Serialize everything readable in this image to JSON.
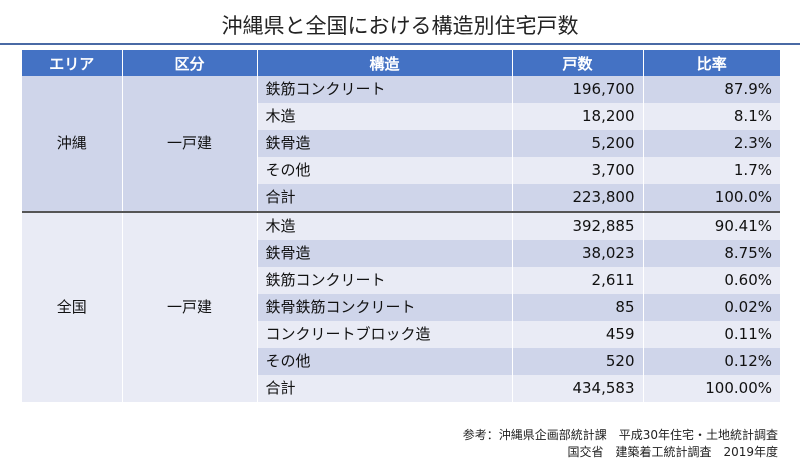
{
  "title": "沖縄県と全国における構造別住宅戸数",
  "headers": [
    "エリア",
    "区分",
    "構造",
    "戸数",
    "比率"
  ],
  "groups": [
    {
      "area": "沖縄",
      "kubun": "一戸建",
      "rows": [
        {
          "structure": "鉄筋コンクリート",
          "count": "196,700",
          "ratio": "87.9%"
        },
        {
          "structure": "木造",
          "count": "18,200",
          "ratio": "8.1%"
        },
        {
          "structure": "鉄骨造",
          "count": "5,200",
          "ratio": "2.3%"
        },
        {
          "structure": "その他",
          "count": "3,700",
          "ratio": "1.7%"
        },
        {
          "structure": "合計",
          "count": "223,800",
          "ratio": "100.0%"
        }
      ]
    },
    {
      "area": "全国",
      "kubun": "一戸建",
      "rows": [
        {
          "structure": "木造",
          "count": "392,885",
          "ratio": "90.41%"
        },
        {
          "structure": "鉄骨造",
          "count": "38,023",
          "ratio": "8.75%"
        },
        {
          "structure": "鉄筋コンクリート",
          "count": "2,611",
          "ratio": "0.60%"
        },
        {
          "structure": "鉄骨鉄筋コンクリート",
          "count": "85",
          "ratio": "0.02%"
        },
        {
          "structure": "コンクリートブロック造",
          "count": "459",
          "ratio": "0.11%"
        },
        {
          "structure": "その他",
          "count": "520",
          "ratio": "0.12%"
        },
        {
          "structure": "合計",
          "count": "434,583",
          "ratio": "100.00%"
        }
      ]
    }
  ],
  "notes": [
    "参考：沖縄県企画部統計課　平成30年住宅・土地統計調査",
    "国交省　建築着工統計調査　2019年度"
  ]
}
